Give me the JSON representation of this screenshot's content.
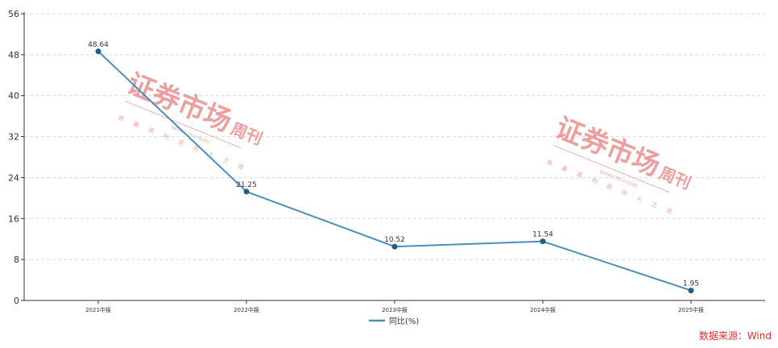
{
  "chart_data": {
    "type": "line",
    "categories": [
      "2021中报",
      "2022中报",
      "2023中报",
      "2024中报",
      "2025中报"
    ],
    "series": [
      {
        "name": "同比(%)",
        "values": [
          48.64,
          21.25,
          10.52,
          11.54,
          1.95
        ],
        "color": "#4b8fb8"
      }
    ],
    "title": "",
    "xlabel": "",
    "ylabel": "",
    "ylim": [
      0,
      56
    ],
    "yticks": [
      0,
      8,
      16,
      24,
      32,
      40,
      48,
      56
    ],
    "grid": "horizontal-dashed",
    "legend_position": "bottom-center",
    "data_labels": true
  },
  "source_text": "数据来源：Wind",
  "watermark": {
    "brand": "证券市场",
    "brand_tail": "周刊",
    "slogan": "WEEKLY ON STOCKS",
    "chars": [
      "做",
      "最",
      "犀",
      "利",
      "投",
      "资",
      "人",
      "之",
      "选"
    ],
    "color": "#e98f8f"
  }
}
